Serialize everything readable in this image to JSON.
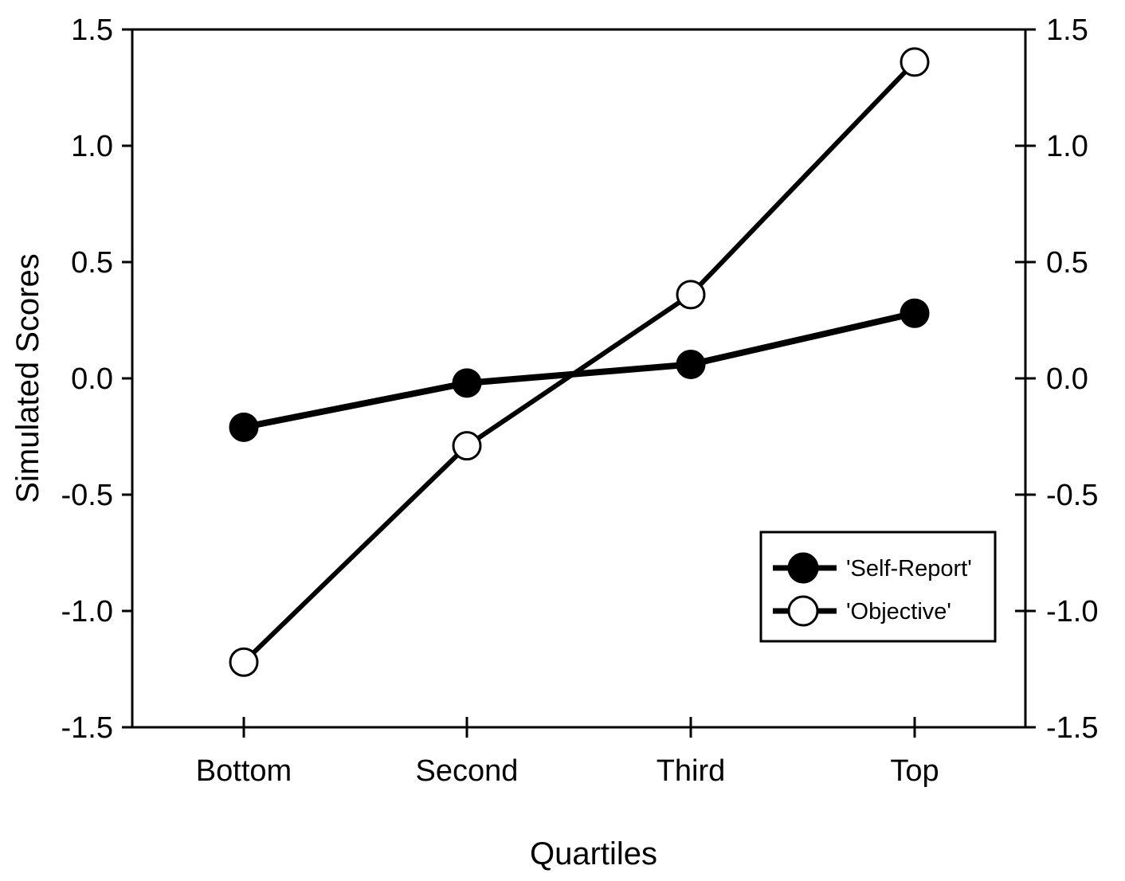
{
  "chart_data": {
    "type": "line",
    "title": "",
    "xlabel": "Quartiles",
    "ylabel": "Simulated Scores",
    "categories": [
      "Bottom",
      "Second",
      "Third",
      "Top"
    ],
    "ylim": [
      -1.5,
      1.5
    ],
    "yticks": [
      "-1.5",
      "-1.0",
      "-0.5",
      "0.0",
      "0.5",
      "1.0",
      "1.5"
    ],
    "secondary_y_axis": true,
    "grid": false,
    "legend_position": "bottom-right",
    "series": [
      {
        "name": "'Self-Report'",
        "marker": "filled-circle",
        "color": "#000000",
        "values": [
          -0.21,
          -0.02,
          0.06,
          0.28
        ]
      },
      {
        "name": "'Objective'",
        "marker": "open-circle",
        "color": "#000000",
        "values": [
          -1.22,
          -0.29,
          0.36,
          1.36
        ]
      }
    ]
  }
}
